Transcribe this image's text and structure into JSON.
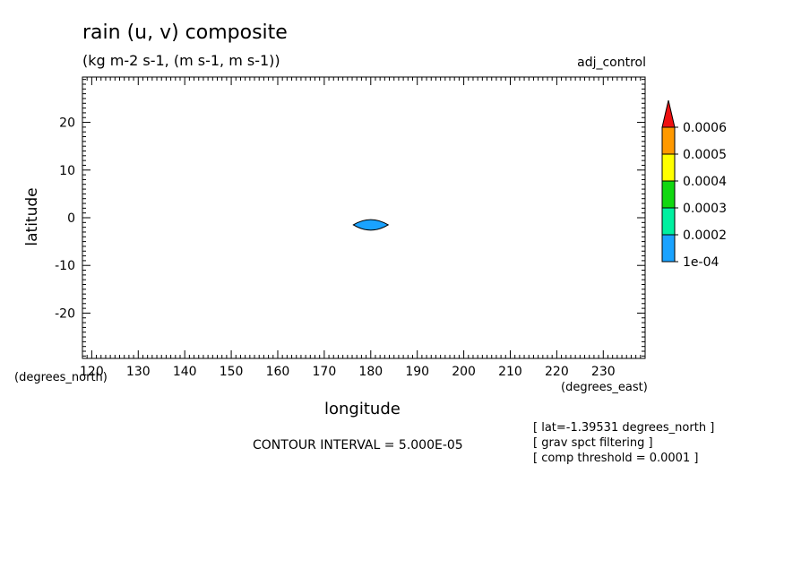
{
  "chart_data": {
    "type": "heatmap",
    "title": "rain (u, v) composite",
    "units": "(kg m-2 s-1, (m s-1, m s-1))",
    "dataset": "adj_control",
    "xlabel": "longitude",
    "ylabel": "latitude",
    "x_units": "(degrees_east)",
    "y_units": "(degrees_north)",
    "xlim": [
      118,
      239
    ],
    "ylim": [
      -29.5,
      29.5
    ],
    "x_ticks": [
      120,
      130,
      140,
      150,
      160,
      170,
      180,
      190,
      200,
      210,
      220,
      230
    ],
    "y_ticks": [
      20,
      10,
      0,
      -10,
      -20
    ],
    "x_tick_labels": [
      "120",
      "130",
      "140",
      "150",
      "160",
      "170",
      "180",
      "190",
      "200",
      "210",
      "220",
      "230"
    ],
    "y_tick_labels": [
      "20",
      "10",
      "0",
      "-10",
      "-20"
    ],
    "grid": false,
    "contour_interval_text": "CONTOUR INTERVAL = 5.000E-05",
    "colorbar": {
      "levels": [
        "1e-04",
        "0.0002",
        "0.0003",
        "0.0004",
        "0.0005",
        "0.0006"
      ],
      "colors": [
        "#1aa3ff",
        "#00f0a0",
        "#11d811",
        "#ffff00",
        "#ff9900",
        "#ee1111"
      ],
      "extend": "max"
    },
    "features": [
      {
        "name": "rain maximum",
        "center_lon": 180,
        "center_lat": -1.5,
        "width_lon": 7.5,
        "height_lat": 2.2,
        "level": "1e-04",
        "color": "#1aa3ff"
      }
    ]
  },
  "notes": [
    "[ lat=-1.39531 degrees_north ]",
    "[ grav spct filtering ]",
    "[ comp threshold = 0.0001 ]"
  ]
}
